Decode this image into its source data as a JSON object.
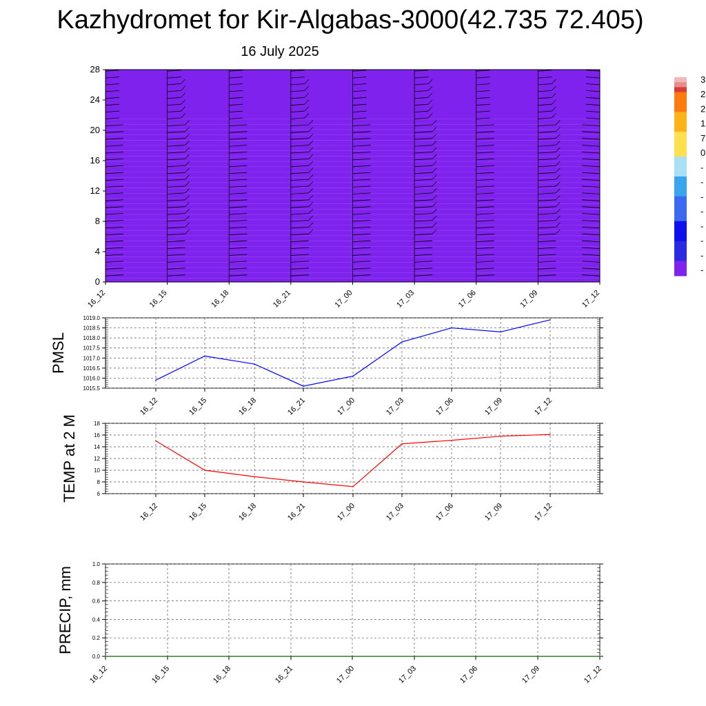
{
  "title": "Kazhydromet for Kir-Algabas-3000(42.735 72.405)",
  "date": "16 July 2025",
  "colors": {
    "pmsl_line": "#0000ff",
    "temp_line": "#ff0000",
    "precip_line": "#006400",
    "grid": "#555555"
  },
  "colorbar": {
    "labels": [
      "3",
      "2",
      "2",
      "1",
      "7",
      "0",
      "-",
      "-",
      "-",
      "-",
      "-",
      "-",
      "-",
      "-"
    ]
  },
  "chart_data": [
    {
      "type": "heatmap",
      "name": "vertical-section",
      "x_tick_labels": [
        "16_12",
        "16_15",
        "16_18",
        "16_21",
        "17_00",
        "17_03",
        "17_06",
        "17_09",
        "17_12"
      ],
      "y_ticks": [
        0,
        4,
        8,
        12,
        16,
        20,
        24,
        28
      ],
      "ylim": [
        0,
        28
      ],
      "colormap": [
        "#7f22ee",
        "#2a2ae0",
        "#1010ee",
        "#3b6af0",
        "#3aa4ef",
        "#a9dff7",
        "#ffe050",
        "#ffb31a",
        "#ff7a10",
        "#f25512"
      ],
      "wind_barbs": true
    },
    {
      "type": "line",
      "name": "pmsl",
      "ylabel": "PMSL",
      "categories": [
        "16_12",
        "16_15",
        "16_18",
        "16_21",
        "17_00",
        "17_03",
        "17_06",
        "17_09",
        "17_12"
      ],
      "values": [
        1015.9,
        1017.1,
        1016.7,
        1015.6,
        1016.1,
        1017.8,
        1018.5,
        1018.3,
        1018.9
      ],
      "y_ticks": [
        "1015.5",
        "1016.0",
        "1016.5",
        "1017.0",
        "1017.5",
        "1018.0",
        "1018.5",
        "1019.0"
      ],
      "ylim": [
        1015.5,
        1019.0
      ],
      "grid": true
    },
    {
      "type": "line",
      "name": "temp",
      "ylabel": "TEMP at 2 M",
      "categories": [
        "16_12",
        "16_15",
        "16_18",
        "16_21",
        "17_00",
        "17_03",
        "17_06",
        "17_09",
        "17_12"
      ],
      "values": [
        15.0,
        10.0,
        8.9,
        8.0,
        7.2,
        14.5,
        15.1,
        15.8,
        16.1
      ],
      "y_ticks": [
        "6",
        "8",
        "10",
        "12",
        "14",
        "16",
        "18"
      ],
      "ylim": [
        6,
        18
      ],
      "grid": true
    },
    {
      "type": "line",
      "name": "precip",
      "ylabel": "PRECIP, mm",
      "x_tick_labels": [
        "16_12",
        "16_15",
        "16_18",
        "16_21",
        "17_00",
        "17_03",
        "17_06",
        "17_09",
        "17_12"
      ],
      "values": [
        0,
        0,
        0,
        0,
        0,
        0,
        0,
        0,
        0
      ],
      "y_ticks": [
        "0.0",
        "0.2",
        "0.4",
        "0.6",
        "0.8",
        "1.0"
      ],
      "ylim": [
        0,
        1.0
      ],
      "grid": true
    }
  ]
}
